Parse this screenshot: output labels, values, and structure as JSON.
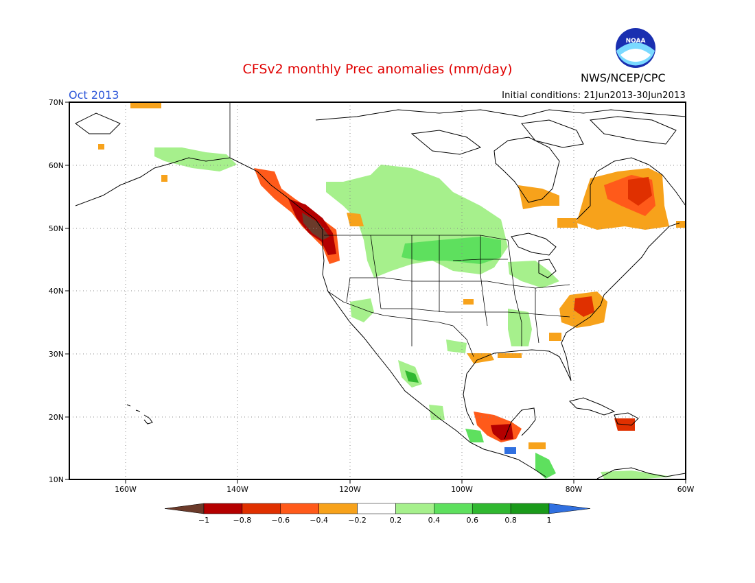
{
  "title": "CFSv2 monthly Prec anomalies (mm/day)",
  "agency": "NWS/NCEP/CPC",
  "logo_text": "NOAA",
  "valid_month": "Oct 2013",
  "initial_conditions": "Initial conditions: 21Jun2013-30Jun2013",
  "lon_labels": [
    "160W",
    "140W",
    "120W",
    "100W",
    "80W",
    "60W"
  ],
  "lat_labels": [
    "70N",
    "60N",
    "50N",
    "40N",
    "30N",
    "20N",
    "10N"
  ],
  "colorbar": {
    "labels": [
      "-1",
      "-0.8",
      "-0.6",
      "-0.4",
      "-0.2",
      "0.2",
      "0.4",
      "0.6",
      "0.8",
      "1"
    ],
    "colors": [
      "#6b3a2a",
      "#b40000",
      "#e03000",
      "#ff5a1a",
      "#f7a21b",
      "#ffffff",
      "#a6f08c",
      "#5ee05e",
      "#30b830",
      "#1a9a1a",
      "#3070e0"
    ]
  },
  "anomaly_cells": [
    {
      "lat": 57,
      "lon": -132,
      "color": "#ff5a1a"
    },
    {
      "lat": 55,
      "lon": -130,
      "color": "#e03000"
    },
    {
      "lat": 53,
      "lon": -128,
      "color": "#b40000"
    },
    {
      "lat": 51,
      "lon": -127,
      "color": "#6b3a2a"
    },
    {
      "lat": 50,
      "lon": -126,
      "color": "#6b3a2a"
    },
    {
      "lat": 49,
      "lon": -124,
      "color": "#b40000"
    },
    {
      "lat": 47,
      "lon": -123,
      "color": "#e03000"
    },
    {
      "lat": 45,
      "lon": -123,
      "color": "#f7a21b"
    },
    {
      "lat": 58,
      "lon": -72,
      "color": "#e03000"
    },
    {
      "lat": 56,
      "lon": -75,
      "color": "#f7a21b"
    },
    {
      "lat": 53,
      "lon": -70,
      "color": "#f7a21b"
    },
    {
      "lat": 37,
      "lon": -79,
      "color": "#e03000"
    },
    {
      "lat": 36,
      "lon": -81,
      "color": "#f7a21b"
    },
    {
      "lat": 18,
      "lon": -93,
      "color": "#b40000"
    },
    {
      "lat": 19,
      "lon": -71,
      "color": "#e03000"
    },
    {
      "lat": 57,
      "lon": -110,
      "color": "#a6f08c"
    },
    {
      "lat": 53,
      "lon": -110,
      "color": "#a6f08c"
    },
    {
      "lat": 47,
      "lon": -100,
      "color": "#5ee05e"
    },
    {
      "lat": 41,
      "lon": -115,
      "color": "#a6f08c"
    },
    {
      "lat": 34,
      "lon": -88,
      "color": "#a6f08c"
    },
    {
      "lat": 61,
      "lon": -145,
      "color": "#a6f08c"
    },
    {
      "lat": 27,
      "lon": -108,
      "color": "#30b830"
    },
    {
      "lat": 15,
      "lon": -90,
      "color": "#5ee05e"
    },
    {
      "lat": 14,
      "lon": -89,
      "color": "#3070e0"
    },
    {
      "lat": 12,
      "lon": -84,
      "color": "#5ee05e"
    },
    {
      "lat": 30,
      "lon": -94,
      "color": "#f7a21b"
    },
    {
      "lat": 39,
      "lon": -96,
      "color": "#f7a21b"
    },
    {
      "lat": 49,
      "lon": -120,
      "color": "#f7a21b"
    }
  ]
}
